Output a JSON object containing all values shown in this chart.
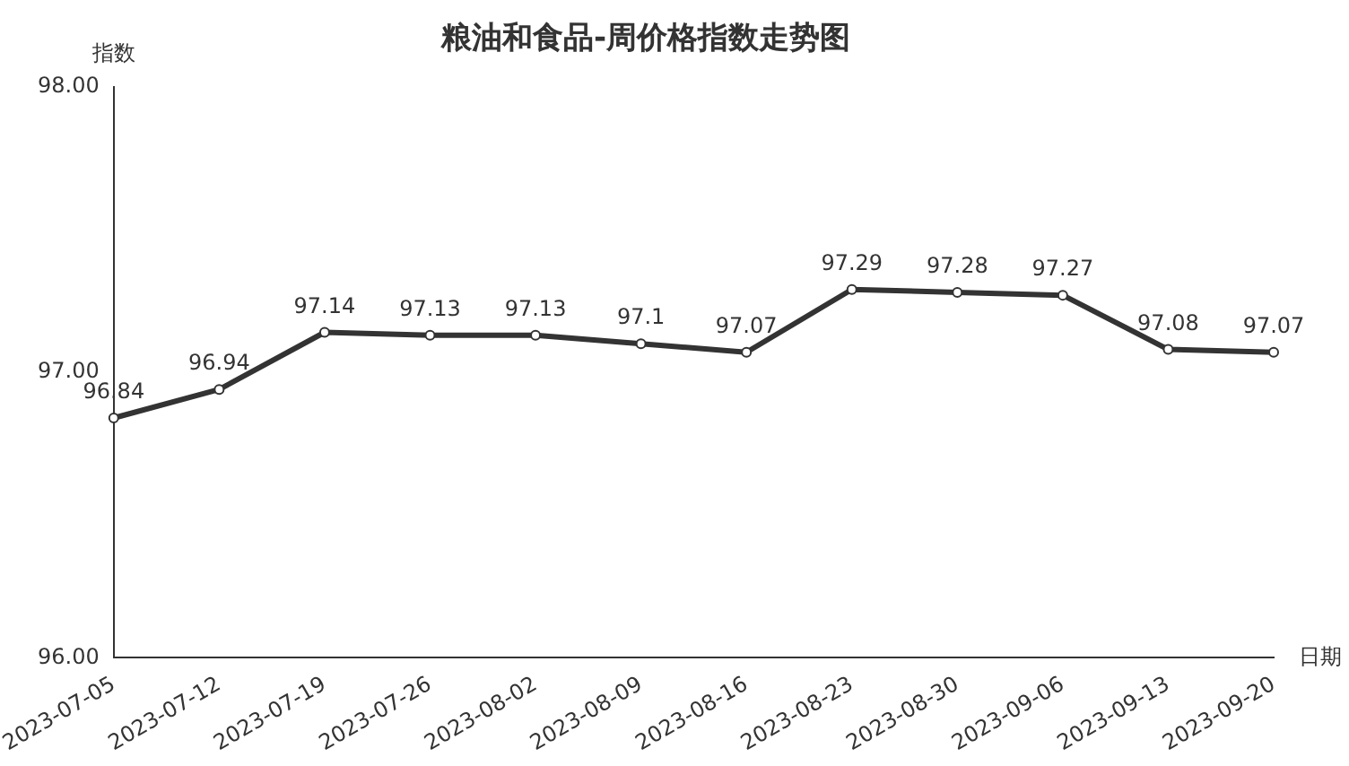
{
  "chart_data": {
    "type": "line",
    "title": "粮油和食品-周价格指数走势图",
    "xlabel": "日期",
    "ylabel": "指数",
    "categories": [
      "2023-07-05",
      "2023-07-12",
      "2023-07-19",
      "2023-07-26",
      "2023-08-02",
      "2023-08-09",
      "2023-08-16",
      "2023-08-23",
      "2023-08-30",
      "2023-09-06",
      "2023-09-13",
      "2023-09-20"
    ],
    "series": [
      {
        "color": "#333333",
        "values": [
          96.84,
          96.94,
          97.14,
          97.13,
          97.13,
          97.1,
          97.07,
          97.29,
          97.28,
          97.27,
          97.08,
          97.07
        ]
      }
    ],
    "ylim": [
      96,
      98
    ],
    "yticks": [
      {
        "value": 96,
        "label": "96.00"
      },
      {
        "value": 97,
        "label": "97.00"
      },
      {
        "value": 98,
        "label": "98.00"
      }
    ],
    "grid": false,
    "legend": false,
    "marker": "circle",
    "line_style": "solid",
    "data_labels": true
  }
}
